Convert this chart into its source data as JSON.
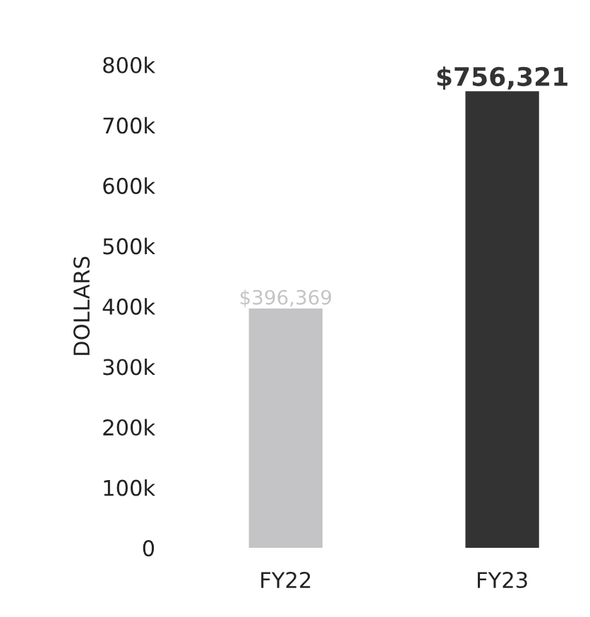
{
  "chart_data": {
    "type": "bar",
    "ylabel": "DOLLARS",
    "categories": [
      "FY22",
      "FY23"
    ],
    "values": [
      396369,
      756321
    ],
    "colors": [
      "#c4c4c6",
      "#333333"
    ],
    "value_labels": [
      "$396,369",
      "$756,321"
    ],
    "ylim": [
      0,
      800000
    ],
    "yticks": [
      {
        "value": 0,
        "label": "0"
      },
      {
        "value": 100000,
        "label": "100k"
      },
      {
        "value": 200000,
        "label": "200k"
      },
      {
        "value": 300000,
        "label": "300k"
      },
      {
        "value": 400000,
        "label": "400k"
      },
      {
        "value": 500000,
        "label": "500k"
      },
      {
        "value": 600000,
        "label": "600k"
      },
      {
        "value": 700000,
        "label": "700k"
      },
      {
        "value": 800000,
        "label": "800k"
      }
    ],
    "grid": false,
    "legend": false
  }
}
